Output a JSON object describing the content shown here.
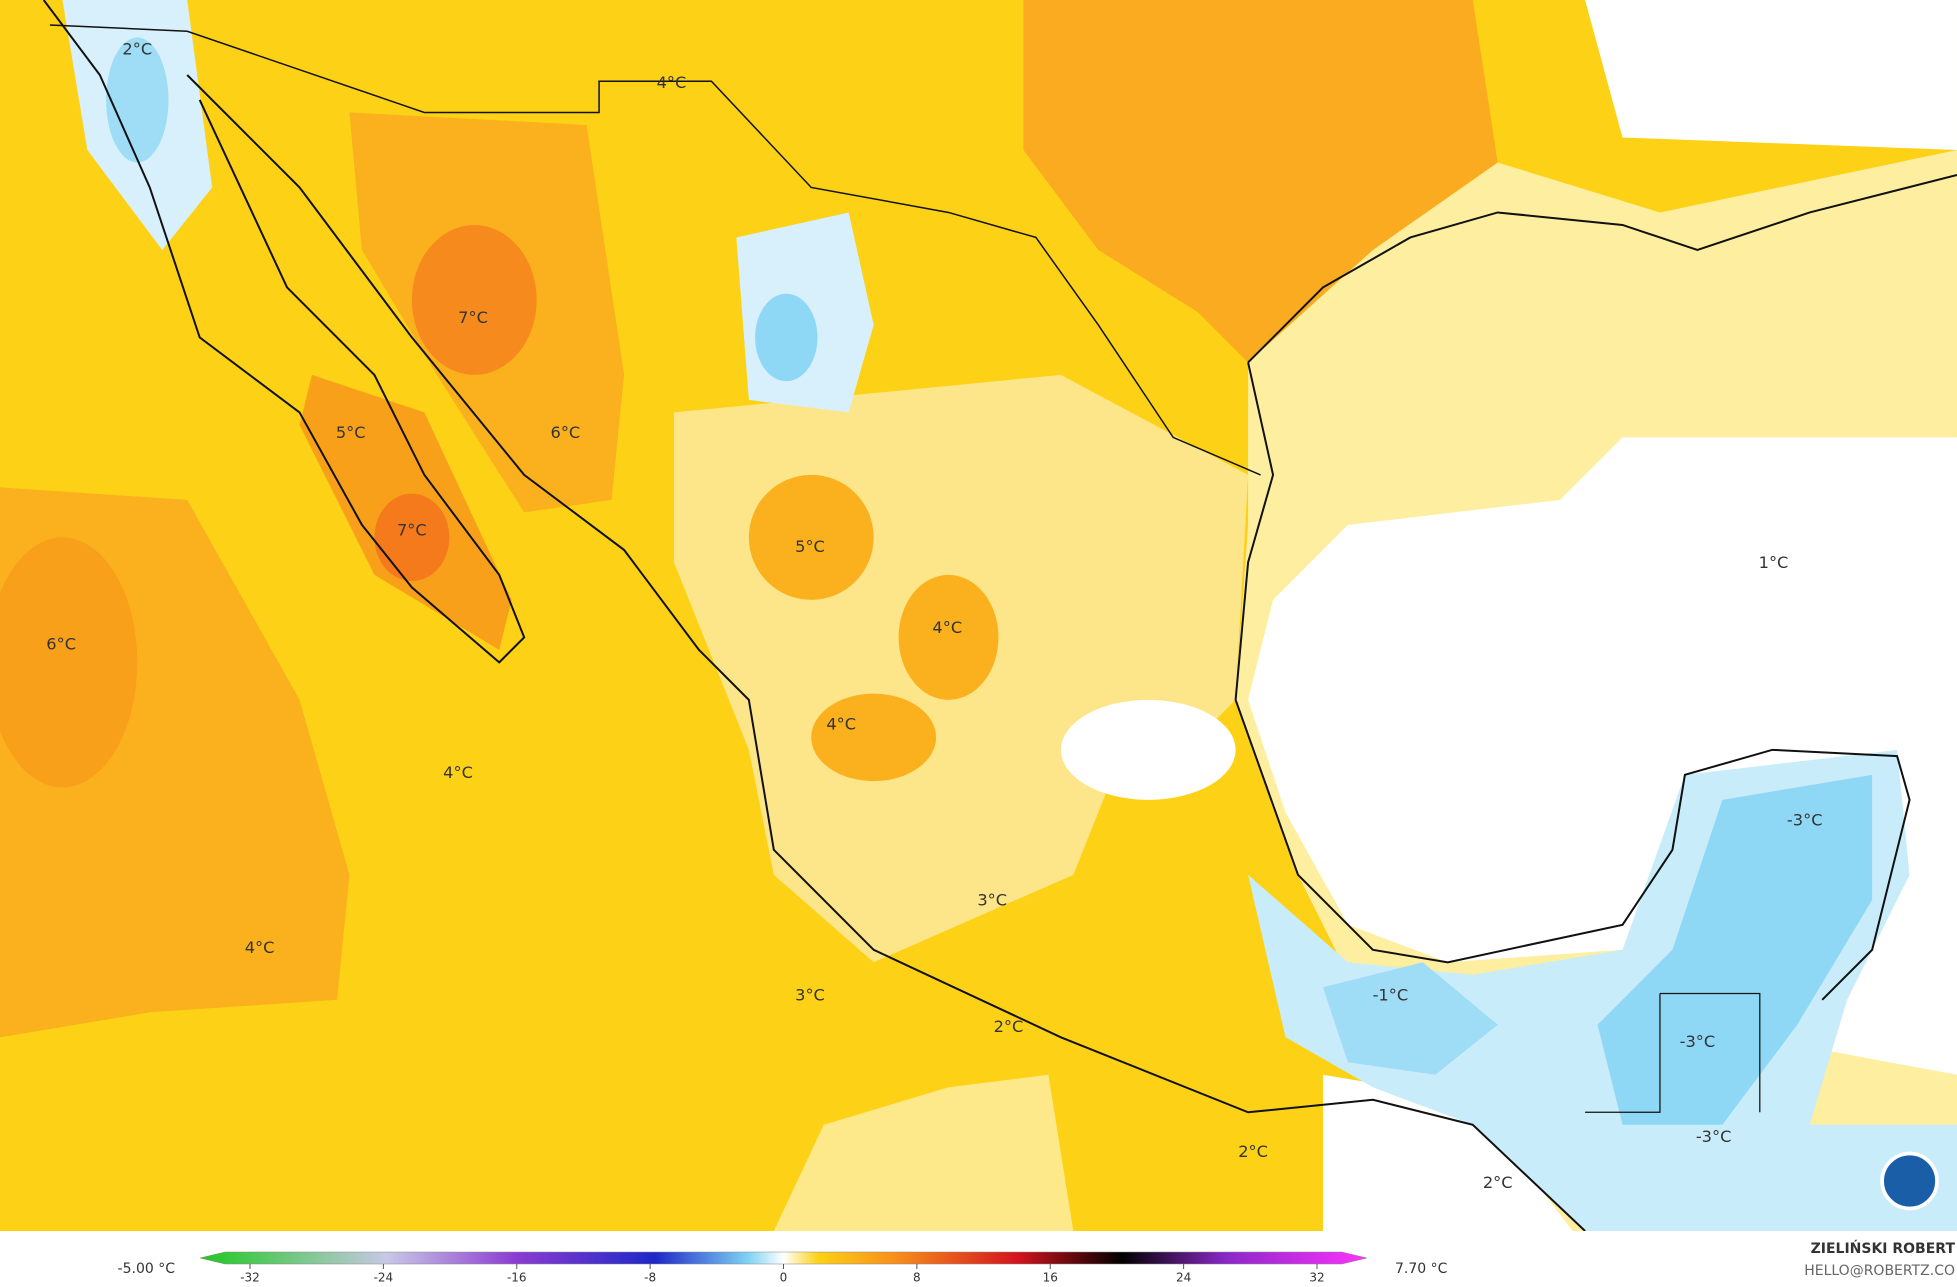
{
  "map": {
    "labels": [
      "2°C",
      "4°C",
      "7°C",
      "5°C",
      "6°C",
      "7°C",
      "6°C",
      "5°C",
      "4°C",
      "1°C",
      "4°C",
      "4°C",
      "-3°C",
      "3°C",
      "4°C",
      "3°C",
      "-1°C",
      "2°C",
      "-3°C",
      "-3°C",
      "2°C",
      "2°C"
    ]
  },
  "colorbar": {
    "min_label": "-5.00 °C",
    "max_label": "7.70 °C",
    "xlim": [
      -35,
      35
    ],
    "xticks": [
      -32,
      -24,
      -16,
      -8,
      0,
      8,
      16,
      24,
      32
    ]
  },
  "credit": {
    "author": "ZIELIŃSKI ROBERT",
    "contact": "HELLO@ROBERTZ.CO"
  }
}
